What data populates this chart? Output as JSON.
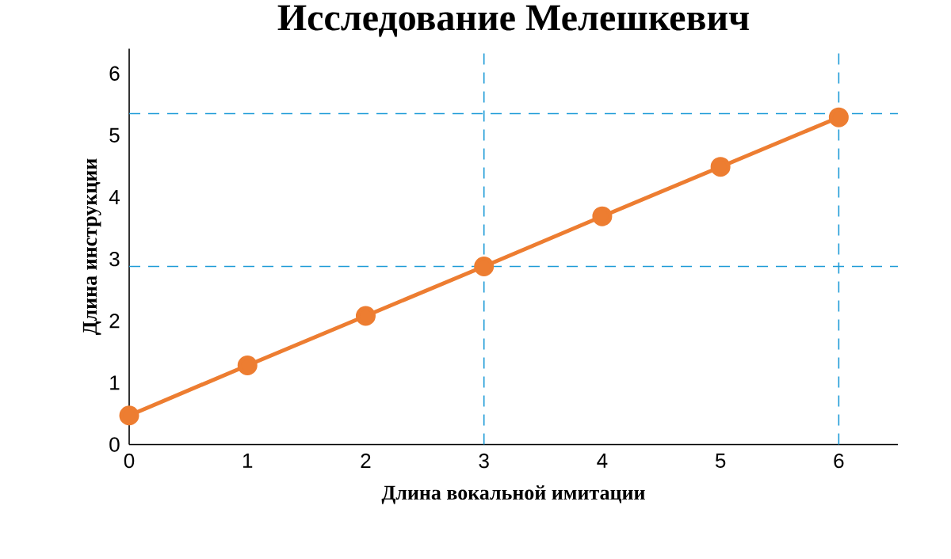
{
  "chart_data": {
    "type": "line",
    "title": "Исследование Мелешкевич",
    "xlabel": "Длина вокальной имитации",
    "ylabel": "Длина инструкции",
    "x": [
      0,
      1,
      2,
      3,
      4,
      5,
      6
    ],
    "series": [
      {
        "color": "#ed7d31",
        "values": [
          0.47,
          1.28,
          2.08,
          2.88,
          3.69,
          4.49,
          5.29
        ]
      }
    ],
    "marker": "circle",
    "line_style": "solid",
    "xlim": [
      0,
      6.5
    ],
    "ylim": [
      0,
      6.4
    ],
    "xticks": [
      0,
      1,
      2,
      3,
      4,
      5,
      6
    ],
    "yticks": [
      0,
      1,
      2,
      3,
      4,
      5,
      6
    ],
    "ref_lines": [
      {
        "axis": "y",
        "value": 5.35,
        "color": "#1e9bd7",
        "line_style": "dashed"
      },
      {
        "axis": "y",
        "value": 2.88,
        "color": "#1e9bd7",
        "line_style": "dashed"
      },
      {
        "axis": "x",
        "value": 3,
        "color": "#1e9bd7",
        "line_style": "dashed"
      },
      {
        "axis": "x",
        "value": 6,
        "color": "#1e9bd7",
        "line_style": "dashed"
      }
    ]
  }
}
